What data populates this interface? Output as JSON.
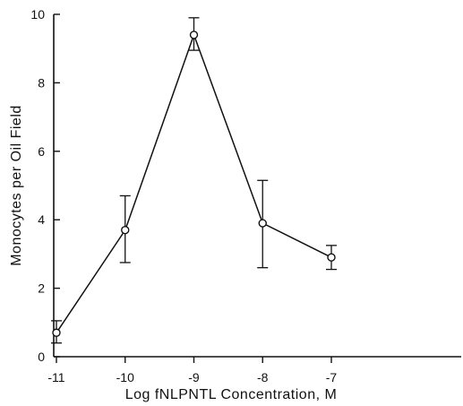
{
  "chart_data": {
    "type": "line",
    "title": "",
    "xlabel": "Log fNLPNTL Concentration, M",
    "ylabel": "Monocytes per Oil Field",
    "xlim": [
      -12,
      -6
    ],
    "ylim": [
      0,
      10
    ],
    "x_ticks": [
      -11,
      -10,
      -9,
      -8,
      -7
    ],
    "x_tick_labels": [
      "-11",
      "-10",
      "-9",
      "-8",
      "-7"
    ],
    "y_ticks": [
      0,
      2,
      4,
      6,
      8,
      10
    ],
    "y_tick_labels": [
      "0",
      "2",
      "4",
      "6",
      "8",
      "10"
    ],
    "grid": false,
    "series": [
      {
        "x": [
          -11,
          -10,
          -9,
          -8,
          -7
        ],
        "y": [
          0.7,
          3.7,
          9.4,
          3.9,
          2.9
        ],
        "err_low": [
          0.4,
          2.75,
          8.95,
          2.6,
          2.55
        ],
        "err_high": [
          1.05,
          4.7,
          9.9,
          5.15,
          3.25
        ],
        "marker": "open-circle",
        "color": "#111111"
      }
    ]
  }
}
